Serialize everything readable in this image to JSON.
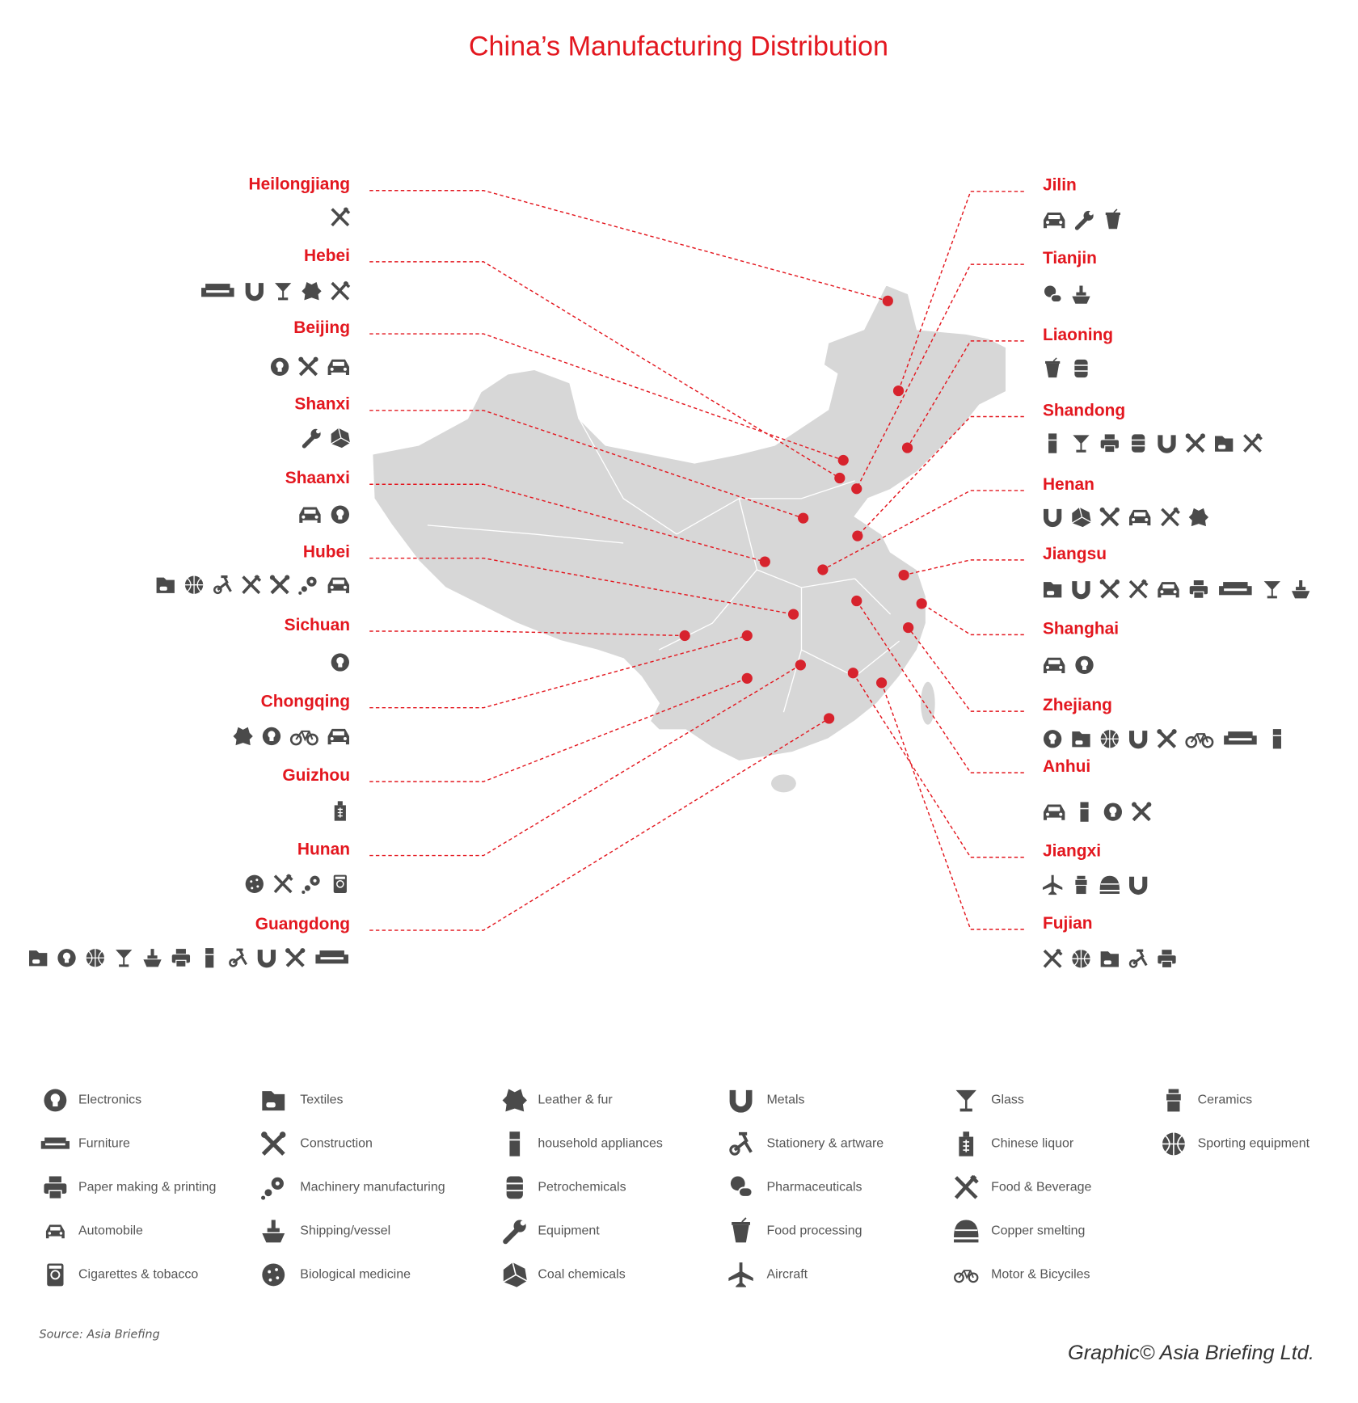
{
  "title": "China’s Manufacturing Distribution",
  "provinces": {
    "left": [
      {
        "name": "Heilongjiang"
      },
      {
        "name": "Hebei"
      },
      {
        "name": "Beijing"
      },
      {
        "name": "Shanxi"
      },
      {
        "name": "Shaanxi"
      },
      {
        "name": "Hubei"
      },
      {
        "name": "Sichuan"
      },
      {
        "name": "Chongqing"
      },
      {
        "name": "Guizhou"
      },
      {
        "name": "Hunan"
      },
      {
        "name": "Guangdong"
      }
    ],
    "right": [
      {
        "name": "Jilin"
      },
      {
        "name": "Tianjin"
      },
      {
        "name": "Liaoning"
      },
      {
        "name": "Shandong"
      },
      {
        "name": "Henan"
      },
      {
        "name": "Jiangsu"
      },
      {
        "name": "Shanghai"
      },
      {
        "name": "Zhejiang"
      },
      {
        "name": "Anhui"
      },
      {
        "name": "Jiangxi"
      },
      {
        "name": "Fujian"
      }
    ]
  },
  "legend": [
    {
      "label": "Electronics"
    },
    {
      "label": "Furniture"
    },
    {
      "label": "Paper making & printing"
    },
    {
      "label": "Automobile"
    },
    {
      "label": "Cigarettes & tobacco"
    },
    {
      "label": "Textiles"
    },
    {
      "label": "Construction"
    },
    {
      "label": "Machinery manufacturing"
    },
    {
      "label": "Shipping/vessel"
    },
    {
      "label": "Biological medicine"
    },
    {
      "label": "Leather & fur"
    },
    {
      "label": "household appliances"
    },
    {
      "label": "Petrochemicals"
    },
    {
      "label": "Equipment"
    },
    {
      "label": "Coal chemicals"
    },
    {
      "label": "Metals"
    },
    {
      "label": "Stationery & artware"
    },
    {
      "label": "Pharmaceuticals"
    },
    {
      "label": "Food processing"
    },
    {
      "label": "Aircraft"
    },
    {
      "label": "Glass"
    },
    {
      "label": "Chinese liquor"
    },
    {
      "label": "Food & Beverage"
    },
    {
      "label": "Copper smelting"
    },
    {
      "label": "Motor & Bicyciles"
    },
    {
      "label": "Ceramics"
    },
    {
      "label": "Sporting equipment"
    }
  ],
  "source": "Source: Asia Briefing",
  "credit": "Graphic© Asia Briefing Ltd."
}
